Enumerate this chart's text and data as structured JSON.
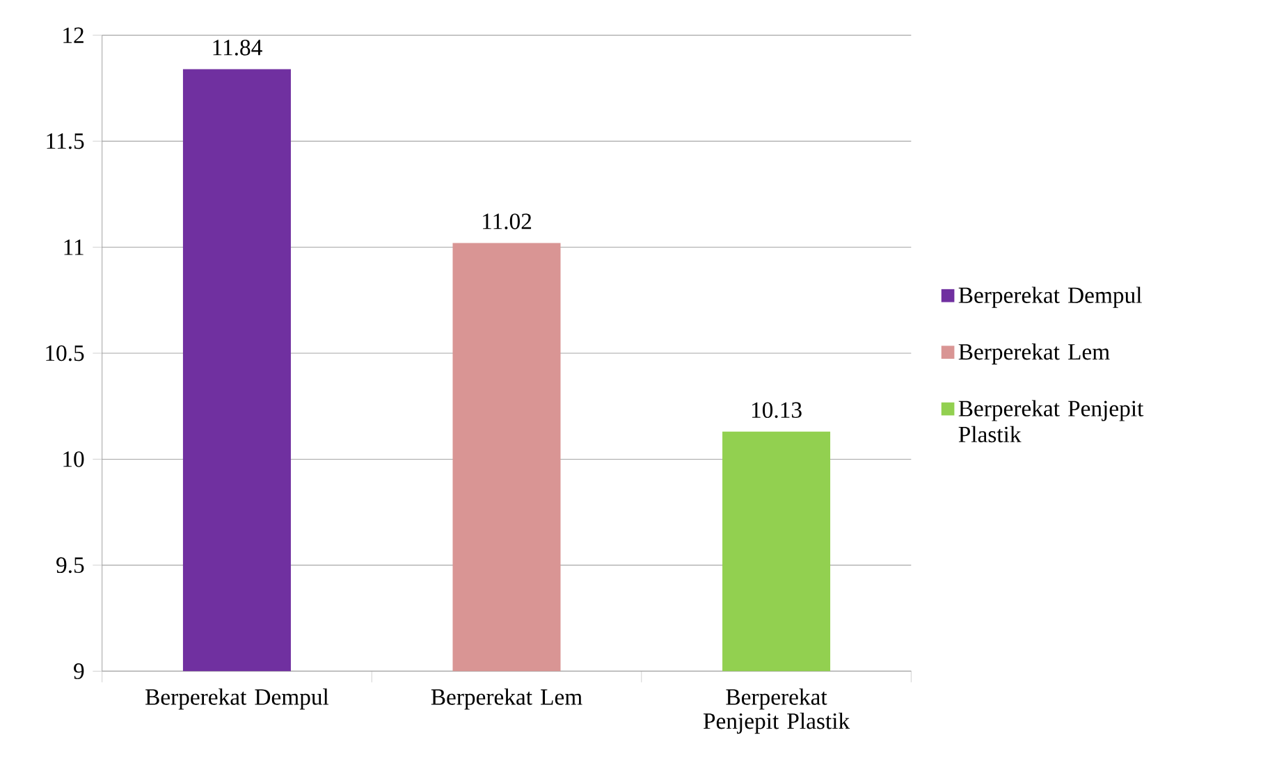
{
  "chart_data": {
    "type": "bar",
    "categories": [
      "Berperekat Dempul",
      "Berperekat Lem",
      "Berperekat Penjepit Plastik"
    ],
    "series": [
      {
        "name": "Berperekat Dempul",
        "color": "#7030a0",
        "values": [
          11.84,
          null,
          null
        ]
      },
      {
        "name": "Berperekat Lem",
        "color": "#d99594",
        "values": [
          null,
          11.02,
          null
        ]
      },
      {
        "name": "Berperekat Penjepit Plastik",
        "color": "#92d050",
        "values": [
          null,
          null,
          10.13
        ]
      }
    ],
    "ylim": [
      9,
      12
    ],
    "yticks": [
      9,
      9.5,
      10,
      10.5,
      11,
      11.5,
      12
    ],
    "grid": "y",
    "data_labels": true,
    "legend": "right"
  }
}
